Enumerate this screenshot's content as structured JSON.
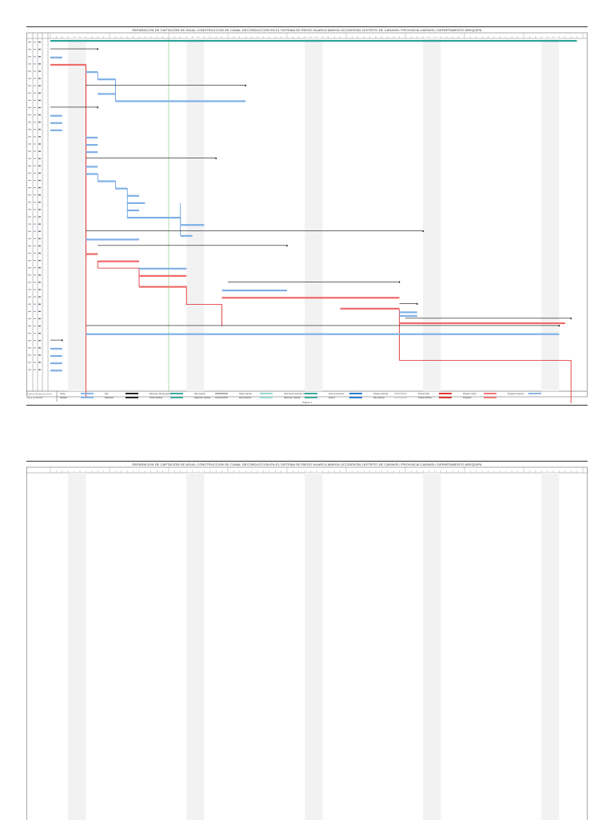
{
  "project": {
    "title": "REPARACION DE CAPTACIÓN DE AGUA; CONSTRUCCION DE CANAL DECONDUCCION EN EL SISTEMA DE RIEGO HUARCA MARGA OCCIDENTAL DISTRITO DE CARAVELI PROVINCIA CARAVELI DEPARTAMENTO AREQUIPA",
    "page_label": "Página 1",
    "project_name": "Proyecto: Recuperacion_Huarca",
    "project_date": "Fecha: jue 26/10/23",
    "summary_label": "3 días"
  },
  "legend": {
    "col1": [
      "Tarea",
      "División"
    ],
    "col2": [
      "Hito",
      "Resumen"
    ],
    "col3": [
      "Resumen del proyecto",
      "Tarea inactiva"
    ],
    "col4": [
      "Hito inactivo",
      "Resumen inactivo"
    ],
    "col5": [
      "Tarea manual",
      "solo duración"
    ],
    "col6": [
      "Informe de resumen manual",
      "Resumen manual"
    ],
    "col7": [
      "solo el comienzo",
      "solo fin"
    ],
    "col8": [
      "Tareas externas",
      "Hito externo"
    ],
    "col9": [
      "Fecha límite",
      "Tareas críticas"
    ],
    "col10": [
      "División crítica",
      "Progreso"
    ],
    "col11": [
      "Progreso manual"
    ]
  },
  "colors": {
    "task": "#7fb0e6",
    "critical": "#f06a6a",
    "link": "#1b6fd1",
    "critical_link": "#e02020",
    "summary": "#111111",
    "project_summary": "#2aa39a",
    "today": "#7cc47c",
    "nonworking": "#f2f2f2"
  },
  "gantt_chart": {
    "task_count": 42,
    "row_duration_labels": [
      "1d",
      "1d",
      "1d",
      "1d",
      "2d",
      "1d",
      "1d",
      "1d",
      "1d",
      "1d",
      "1d",
      "1d",
      "1d",
      "1d",
      "1d",
      "1d",
      "1d",
      "1d",
      "1d",
      "1d",
      "1d",
      "1d",
      "1d",
      "1d",
      "1d",
      "1d",
      "1d",
      "1d",
      "1d",
      "1d",
      "1d",
      "1d",
      "1d",
      "1d",
      "1d",
      "1d",
      "1d",
      "1d",
      "1d",
      "1d",
      "1d",
      "1d"
    ],
    "summaries": [
      {
        "row": 0,
        "start": 0,
        "end": 90
      },
      {
        "row": 1,
        "start": 0,
        "end": 8
      },
      {
        "row": 6,
        "start": 6,
        "end": 33
      },
      {
        "row": 9,
        "start": 0,
        "end": 8
      },
      {
        "row": 16,
        "start": 6,
        "end": 28
      },
      {
        "row": 26,
        "start": 6,
        "end": 63
      },
      {
        "row": 28,
        "start": 8,
        "end": 40
      },
      {
        "row": 33,
        "start": 30,
        "end": 59
      },
      {
        "row": 36,
        "start": 59,
        "end": 62
      },
      {
        "row": 38,
        "start": 60,
        "end": 88
      },
      {
        "row": 39,
        "start": 6,
        "end": 86
      },
      {
        "row": 41,
        "start": 0,
        "end": 2
      }
    ],
    "tasks": [
      {
        "row": 2,
        "start": 0,
        "end": 2,
        "critical": false
      },
      {
        "row": 3,
        "start": 0,
        "end": 6,
        "critical": true
      },
      {
        "row": 4,
        "start": 6,
        "end": 8,
        "critical": false
      },
      {
        "row": 5,
        "start": 8,
        "end": 11,
        "critical": false
      },
      {
        "row": 7,
        "start": 8,
        "end": 11,
        "critical": false
      },
      {
        "row": 8,
        "start": 11,
        "end": 33,
        "critical": false
      },
      {
        "row": 10,
        "start": 0,
        "end": 2,
        "critical": false
      },
      {
        "row": 11,
        "start": 0,
        "end": 2,
        "critical": false
      },
      {
        "row": 12,
        "start": 0,
        "end": 2,
        "critical": false
      },
      {
        "row": 13,
        "start": 6,
        "end": 8,
        "critical": false
      },
      {
        "row": 14,
        "start": 6,
        "end": 8,
        "critical": false
      },
      {
        "row": 15,
        "start": 6,
        "end": 8,
        "critical": false
      },
      {
        "row": 17,
        "start": 6,
        "end": 8,
        "critical": false
      },
      {
        "row": 18,
        "start": 6,
        "end": 8,
        "critical": false
      },
      {
        "row": 19,
        "start": 8,
        "end": 11,
        "critical": false
      },
      {
        "row": 20,
        "start": 11,
        "end": 13,
        "critical": false
      },
      {
        "row": 21,
        "start": 13,
        "end": 15,
        "critical": false
      },
      {
        "row": 22,
        "start": 13,
        "end": 16,
        "critical": false
      },
      {
        "row": 23,
        "start": 13,
        "end": 15,
        "critical": false
      },
      {
        "row": 24,
        "start": 13,
        "end": 22,
        "critical": false
      },
      {
        "row": 25,
        "start": 22,
        "end": 26,
        "critical": false
      },
      {
        "row": 26.5,
        "start": 22,
        "end": 24,
        "critical": false
      },
      {
        "row": 27,
        "start": 6,
        "end": 15,
        "critical": false
      },
      {
        "row": 29,
        "start": 6,
        "end": 8,
        "critical": true
      },
      {
        "row": 30,
        "start": 8,
        "end": 15,
        "critical": true
      },
      {
        "row": 31,
        "start": 15,
        "end": 23,
        "critical": false
      },
      {
        "row": 32,
        "start": 15,
        "end": 23,
        "critical": true
      },
      {
        "row": 33.5,
        "start": 15,
        "end": 23,
        "critical": true
      },
      {
        "row": 34,
        "start": 29,
        "end": 40,
        "critical": false
      },
      {
        "row": 35,
        "start": 29,
        "end": 59,
        "critical": true
      },
      {
        "row": 36.5,
        "start": 49,
        "end": 59,
        "critical": true
      },
      {
        "row": 37,
        "start": 59,
        "end": 62,
        "critical": false
      },
      {
        "row": 37.5,
        "start": 59,
        "end": 62,
        "critical": false
      },
      {
        "row": 38.5,
        "start": 59,
        "end": 87,
        "critical": true
      },
      {
        "row": 40,
        "start": 6,
        "end": 86,
        "critical": false
      },
      {
        "row": 42,
        "start": 0,
        "end": 2,
        "critical": false
      },
      {
        "row": 43,
        "start": 0,
        "end": 2,
        "critical": false
      },
      {
        "row": 44,
        "start": 0,
        "end": 2,
        "critical": false
      },
      {
        "row": 45,
        "start": 0,
        "end": 2,
        "critical": false
      }
    ],
    "today_day": 20,
    "nonworking_bands": [
      3,
      23,
      43,
      63,
      83
    ]
  }
}
